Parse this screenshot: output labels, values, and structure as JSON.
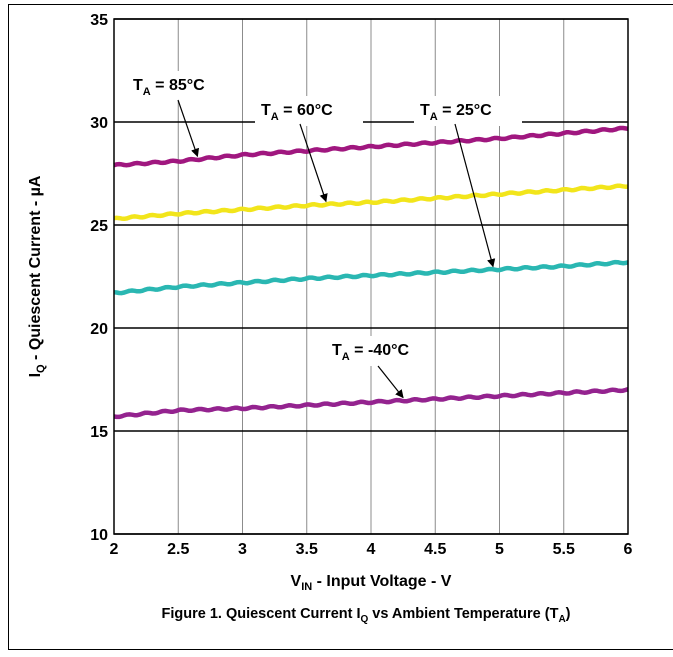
{
  "chart_data": {
    "type": "line",
    "caption": {
      "prefix": "Figure 1. Quiescent Current I",
      "prefix_sub": "Q",
      "middle": " vs Ambient Temperature (T",
      "suffix_sub": "A",
      "suffix": ")"
    },
    "xlabel": {
      "main": "V",
      "sub": "IN",
      "rest": " - Input Voltage - V"
    },
    "ylabel": {
      "main": "I",
      "sub": "Q",
      "rest": " - Quiescent Current - µA"
    },
    "xlim": [
      2,
      6
    ],
    "ylim": [
      10,
      35
    ],
    "xticks": [
      {
        "v": 2,
        "label": "2"
      },
      {
        "v": 2.5,
        "label": "2.5"
      },
      {
        "v": 3,
        "label": "3"
      },
      {
        "v": 3.5,
        "label": "3.5"
      },
      {
        "v": 4,
        "label": "4"
      },
      {
        "v": 4.5,
        "label": "4.5"
      },
      {
        "v": 5,
        "label": "5"
      },
      {
        "v": 5.5,
        "label": "5.5"
      },
      {
        "v": 6,
        "label": "6"
      }
    ],
    "yticks": [
      {
        "v": 10,
        "label": "10"
      },
      {
        "v": 15,
        "label": "15"
      },
      {
        "v": 20,
        "label": "20"
      },
      {
        "v": 25,
        "label": "25"
      },
      {
        "v": 30,
        "label": "30"
      },
      {
        "v": 35,
        "label": "35"
      }
    ],
    "grid": true,
    "x": [
      2,
      2.5,
      3,
      3.5,
      4,
      4.5,
      5,
      5.5,
      6
    ],
    "series": [
      {
        "name": "T_A = 85°C",
        "color": "#a0177f",
        "values": [
          27.9,
          28.1,
          28.4,
          28.6,
          28.8,
          29.0,
          29.2,
          29.45,
          29.7
        ]
      },
      {
        "name": "T_A = 60°C",
        "color": "#f2e51b",
        "values": [
          25.3,
          25.55,
          25.75,
          25.95,
          26.1,
          26.3,
          26.5,
          26.7,
          26.9
        ]
      },
      {
        "name": "T_A = 25°C",
        "color": "#2ab7b2",
        "values": [
          21.7,
          22.0,
          22.2,
          22.4,
          22.55,
          22.7,
          22.85,
          23.0,
          23.2
        ]
      },
      {
        "name": "T_A = -40°C",
        "color": "#94238f",
        "values": [
          15.7,
          16.0,
          16.1,
          16.25,
          16.4,
          16.55,
          16.7,
          16.85,
          17.0
        ]
      }
    ],
    "annotations": [
      {
        "label_main": "T",
        "label_sub": "A",
        "label_rest": " = 85°C",
        "series": 0,
        "target_x": 2.65
      },
      {
        "label_main": "T",
        "label_sub": "A",
        "label_rest": " = 60°C",
        "series": 1,
        "target_x": 3.65
      },
      {
        "label_main": "T",
        "label_sub": "A",
        "label_rest": " = 25°C",
        "series": 2,
        "target_x": 4.95
      },
      {
        "label_main": "T",
        "label_sub": "A",
        "label_rest": " = -40°C",
        "series": 3,
        "target_x": 4.25
      }
    ]
  }
}
